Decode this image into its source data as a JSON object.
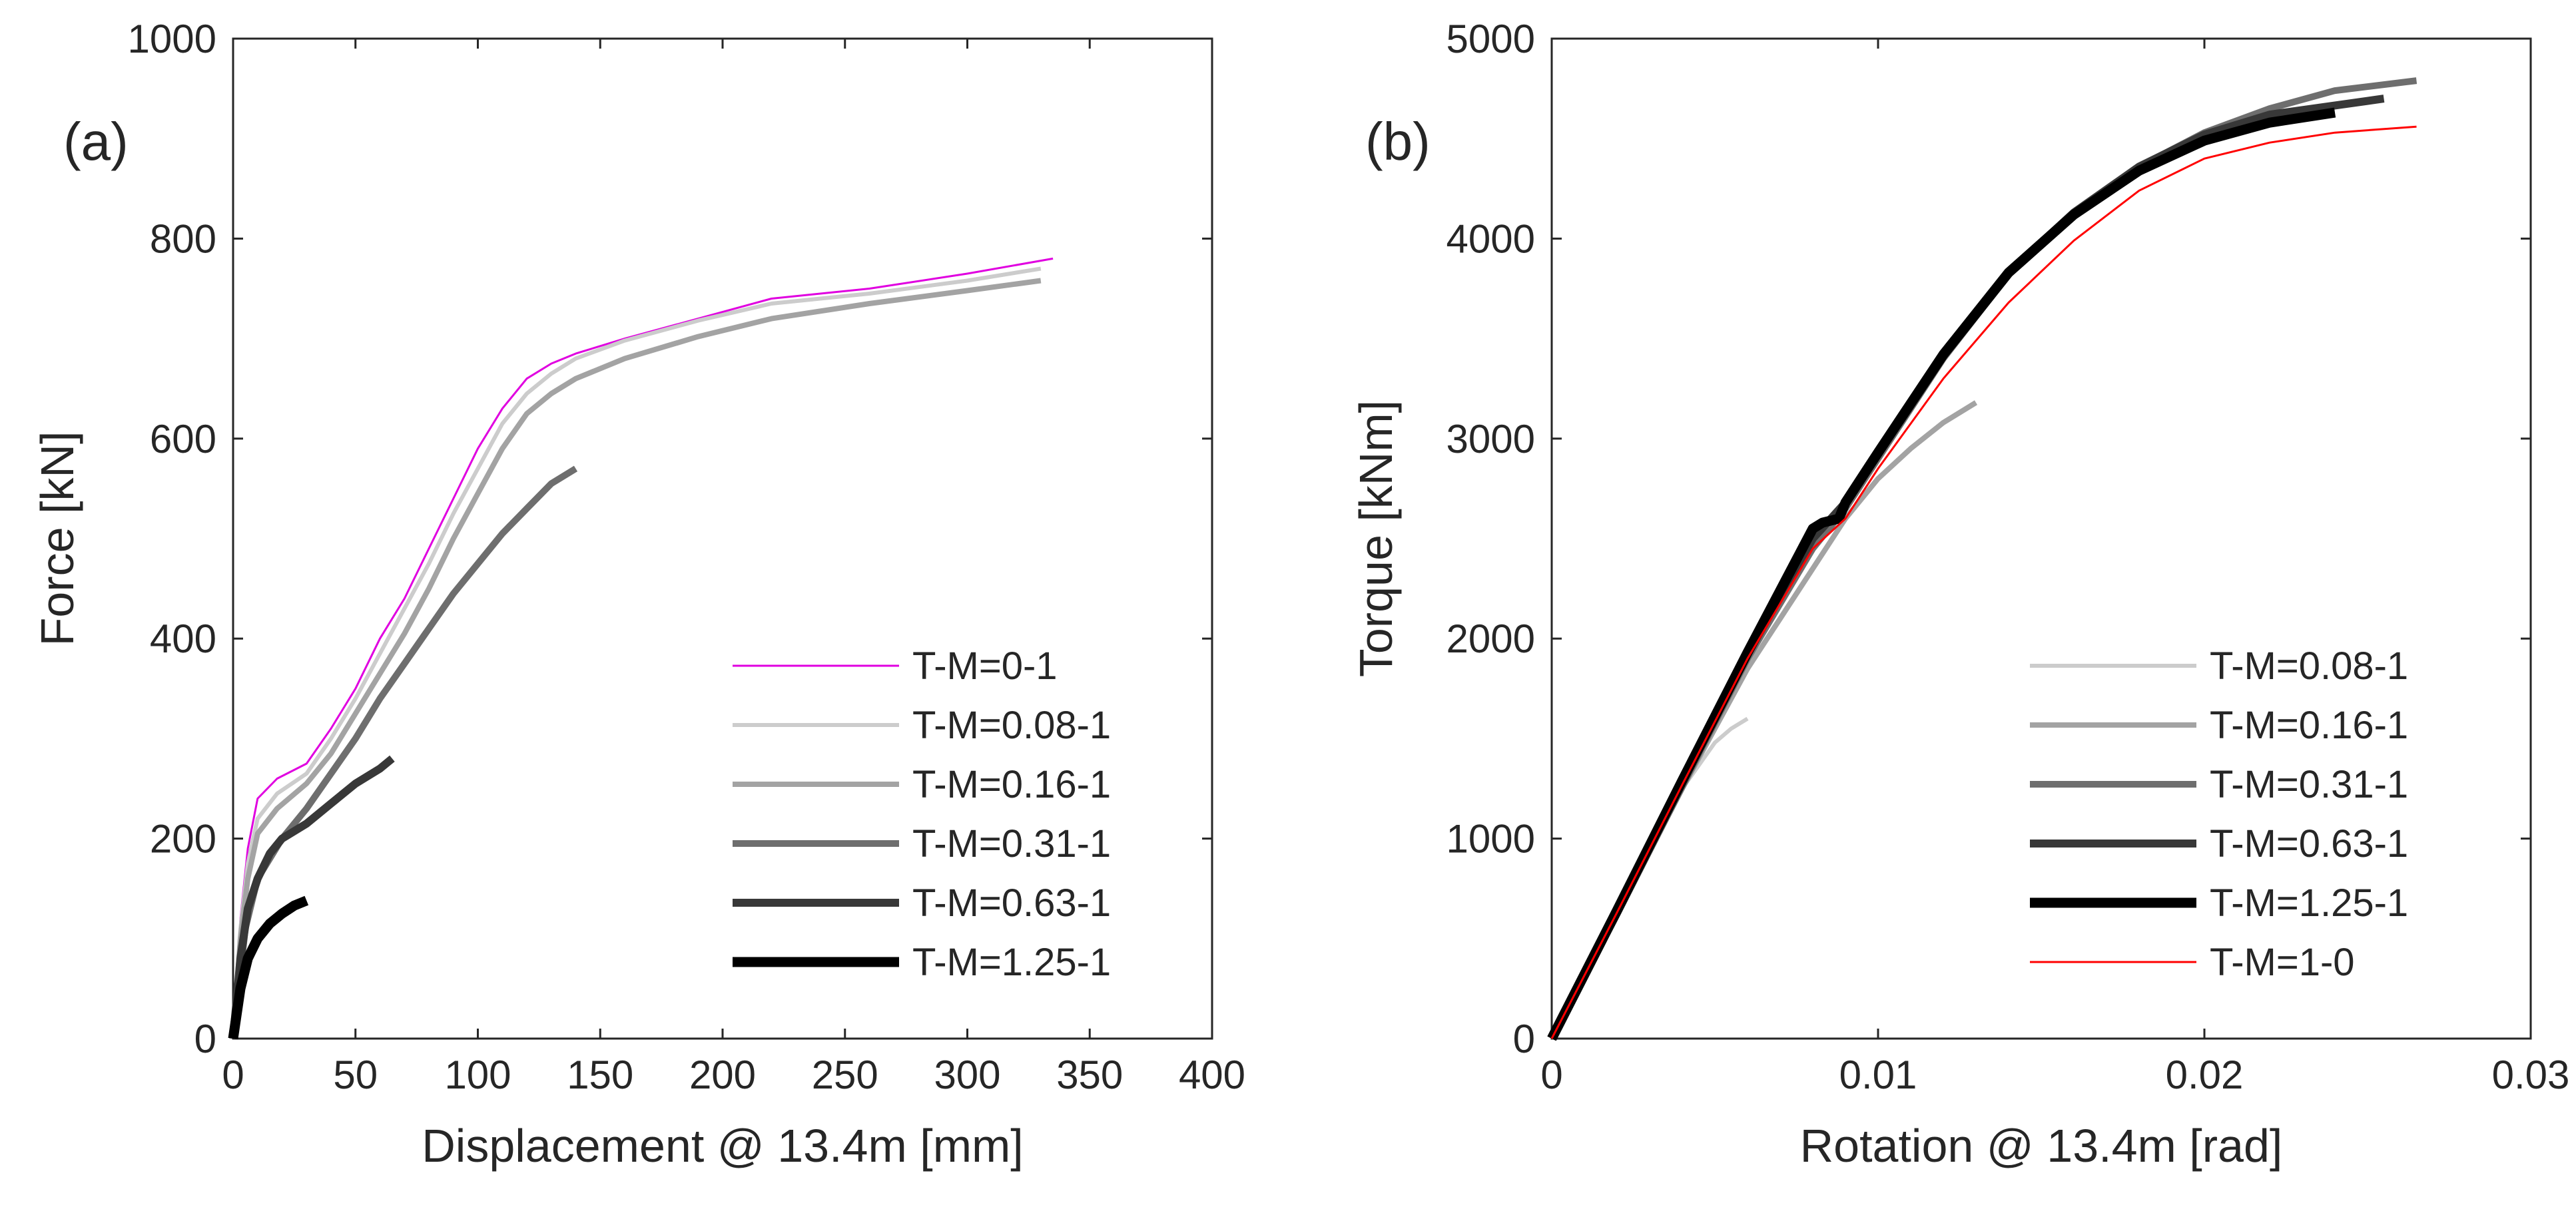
{
  "chart_data": [
    {
      "type": "line",
      "panel_label": "(a)",
      "xlabel": "Displacement @ 13.4m [mm]",
      "ylabel": "Force [kN]",
      "xlim": [
        0,
        400
      ],
      "ylim": [
        0,
        1000
      ],
      "xticks": [
        "0",
        "50",
        "100",
        "150",
        "200",
        "250",
        "300",
        "350",
        "400"
      ],
      "yticks": [
        "0",
        "200",
        "400",
        "600",
        "800",
        "1000"
      ],
      "grid": false,
      "legend_position": "bottom-right",
      "series": [
        {
          "name": "T-M=0-1",
          "color": "#e000e0",
          "width": 3,
          "x": [
            0,
            3,
            6,
            10,
            18,
            30,
            40,
            50,
            60,
            70,
            80,
            90,
            100,
            110,
            120,
            130,
            140,
            160,
            190,
            220,
            260,
            300,
            335
          ],
          "y": [
            0,
            120,
            190,
            240,
            260,
            275,
            310,
            350,
            400,
            440,
            490,
            540,
            590,
            630,
            660,
            675,
            685,
            700,
            720,
            740,
            750,
            765,
            780
          ]
        },
        {
          "name": "T-M=0.08-1",
          "color": "#cccccc",
          "width": 6,
          "x": [
            0,
            3,
            6,
            10,
            18,
            30,
            40,
            50,
            60,
            70,
            80,
            90,
            100,
            110,
            120,
            130,
            140,
            160,
            190,
            220,
            260,
            300,
            330
          ],
          "y": [
            0,
            110,
            175,
            220,
            245,
            265,
            300,
            340,
            385,
            430,
            475,
            525,
            570,
            615,
            645,
            665,
            680,
            698,
            718,
            735,
            745,
            758,
            770
          ]
        },
        {
          "name": "T-M=0.16-1",
          "color": "#a3a3a3",
          "width": 8,
          "x": [
            0,
            3,
            6,
            10,
            18,
            30,
            40,
            50,
            60,
            70,
            80,
            90,
            100,
            110,
            120,
            130,
            140,
            160,
            190,
            220,
            260,
            300,
            330
          ],
          "y": [
            0,
            100,
            160,
            205,
            230,
            255,
            285,
            325,
            365,
            405,
            450,
            500,
            545,
            590,
            625,
            645,
            660,
            680,
            702,
            720,
            735,
            748,
            758
          ]
        },
        {
          "name": "T-M=0.31-1",
          "color": "#6e6e6e",
          "width": 10,
          "x": [
            0,
            5,
            10,
            20,
            30,
            40,
            50,
            60,
            70,
            80,
            90,
            100,
            110,
            120,
            130,
            140
          ],
          "y": [
            0,
            110,
            160,
            200,
            230,
            265,
            300,
            340,
            375,
            410,
            445,
            475,
            505,
            530,
            555,
            570
          ]
        },
        {
          "name": "T-M=0.63-1",
          "color": "#383838",
          "width": 12,
          "x": [
            0,
            3,
            6,
            10,
            15,
            20,
            30,
            40,
            50,
            60,
            65
          ],
          "y": [
            0,
            80,
            130,
            160,
            185,
            200,
            215,
            235,
            255,
            270,
            280
          ]
        },
        {
          "name": "T-M=1.25-1",
          "color": "#000000",
          "width": 15,
          "x": [
            0,
            3,
            6,
            10,
            15,
            20,
            25,
            30
          ],
          "y": [
            0,
            50,
            80,
            100,
            115,
            125,
            133,
            138
          ]
        }
      ]
    },
    {
      "type": "line",
      "panel_label": "(b)",
      "xlabel": "Rotation @ 13.4m [rad]",
      "ylabel": "Torque [kNm]",
      "xlim": [
        0,
        0.03
      ],
      "ylim": [
        0,
        5000
      ],
      "xticks": [
        "0",
        "0.01",
        "0.02",
        "0.03"
      ],
      "yticks": [
        "0",
        "1000",
        "2000",
        "3000",
        "4000",
        "5000"
      ],
      "grid": false,
      "legend_position": "bottom-right",
      "series": [
        {
          "name": "T-M=0.08-1",
          "color": "#cccccc",
          "width": 6,
          "x": [
            0,
            0.002,
            0.004,
            0.005,
            0.0055,
            0.006
          ],
          "y": [
            0,
            620,
            1250,
            1480,
            1550,
            1600
          ]
        },
        {
          "name": "T-M=0.16-1",
          "color": "#a3a3a3",
          "width": 8,
          "x": [
            0,
            0.002,
            0.004,
            0.006,
            0.008,
            0.009,
            0.01,
            0.011,
            0.012,
            0.013
          ],
          "y": [
            0,
            620,
            1250,
            1850,
            2350,
            2600,
            2800,
            2950,
            3080,
            3180
          ]
        },
        {
          "name": "T-M=0.31-1",
          "color": "#6e6e6e",
          "width": 10,
          "x": [
            0,
            0.002,
            0.004,
            0.006,
            0.008,
            0.009,
            0.01,
            0.012,
            0.014,
            0.016,
            0.018,
            0.02,
            0.022,
            0.024,
            0.0265
          ],
          "y": [
            0,
            620,
            1260,
            1900,
            2450,
            2650,
            2900,
            3400,
            3820,
            4120,
            4360,
            4530,
            4650,
            4740,
            4790
          ]
        },
        {
          "name": "T-M=0.63-1",
          "color": "#383838",
          "width": 12,
          "x": [
            0,
            0.002,
            0.004,
            0.006,
            0.008,
            0.009,
            0.01,
            0.012,
            0.014,
            0.016,
            0.018,
            0.02,
            0.022,
            0.0255
          ],
          "y": [
            0,
            630,
            1280,
            1920,
            2500,
            2680,
            2920,
            3420,
            3830,
            4130,
            4360,
            4520,
            4620,
            4700
          ]
        },
        {
          "name": "T-M=1.25-1",
          "color": "#000000",
          "width": 15,
          "x": [
            0,
            0.002,
            0.004,
            0.006,
            0.008,
            0.0083,
            0.0088,
            0.009,
            0.01,
            0.012,
            0.014,
            0.016,
            0.018,
            0.02,
            0.022,
            0.024
          ],
          "y": [
            0,
            640,
            1290,
            1930,
            2550,
            2580,
            2600,
            2680,
            2930,
            3420,
            3830,
            4120,
            4340,
            4490,
            4580,
            4630
          ]
        },
        {
          "name": "T-M=1-0",
          "color": "#ff0000",
          "width": 3,
          "x": [
            0,
            0.002,
            0.004,
            0.006,
            0.008,
            0.009,
            0.01,
            0.012,
            0.014,
            0.016,
            0.018,
            0.02,
            0.022,
            0.024,
            0.0265
          ],
          "y": [
            0,
            630,
            1270,
            1900,
            2450,
            2600,
            2850,
            3300,
            3680,
            3990,
            4240,
            4400,
            4480,
            4530,
            4560
          ]
        }
      ]
    }
  ]
}
